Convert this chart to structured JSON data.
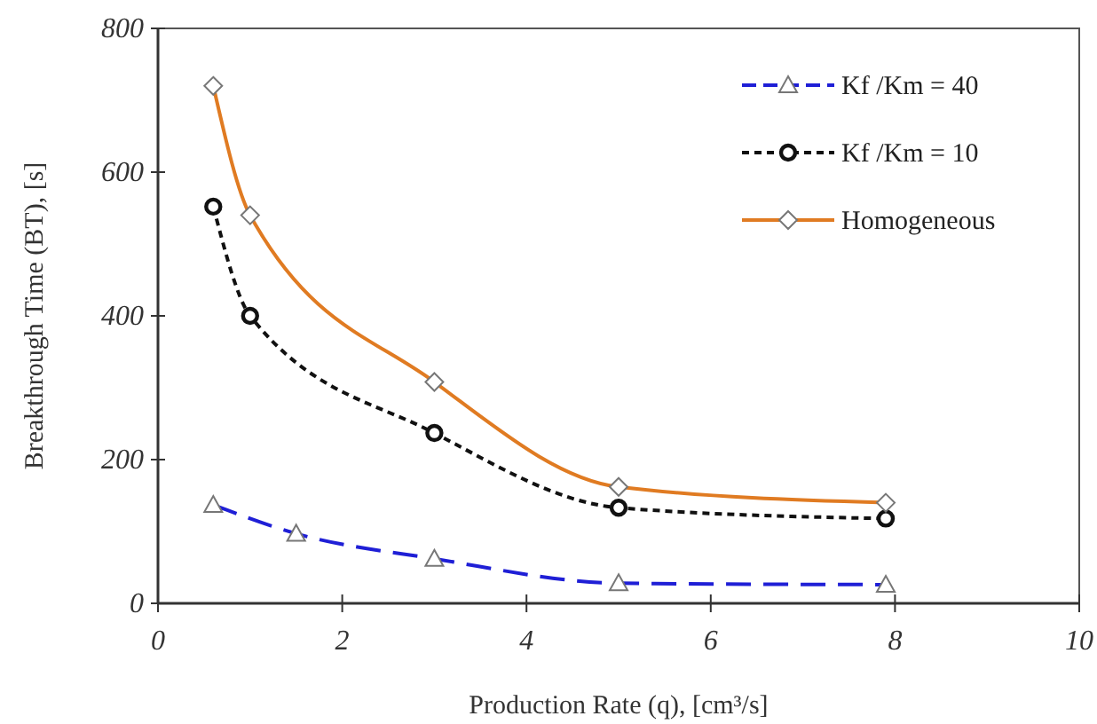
{
  "chart_data": {
    "type": "line",
    "xlabel": "Production Rate (q), [cm³/s]",
    "ylabel": "Breakthrough Time (BT), [s]",
    "xlim": [
      0,
      10
    ],
    "xticks": [
      0,
      2,
      4,
      6,
      8,
      10
    ],
    "ylim": [
      0,
      800
    ],
    "yticks": [
      0,
      200,
      400,
      600,
      800
    ],
    "grid": false,
    "legend": "top right",
    "series": [
      {
        "name": "Kf /Km = 40",
        "color": "#1f1fd6",
        "marker": "triangle",
        "line_style": "dashed",
        "x": [
          0.6,
          1.5,
          3,
          5,
          7.9
        ],
        "values": [
          137,
          97,
          62,
          28,
          26
        ]
      },
      {
        "name": "Kf /Km = 10",
        "color": "#111111",
        "marker": "circle",
        "line_style": "dotted",
        "x": [
          0.6,
          1,
          3,
          5,
          7.9
        ],
        "values": [
          552,
          400,
          237,
          133,
          118
        ]
      },
      {
        "name": "Homogeneous",
        "color": "#e07b22",
        "marker": "diamond",
        "line_style": "solid",
        "x": [
          0.6,
          1,
          3,
          5,
          7.9
        ],
        "values": [
          720,
          540,
          308,
          162,
          140
        ]
      }
    ]
  }
}
